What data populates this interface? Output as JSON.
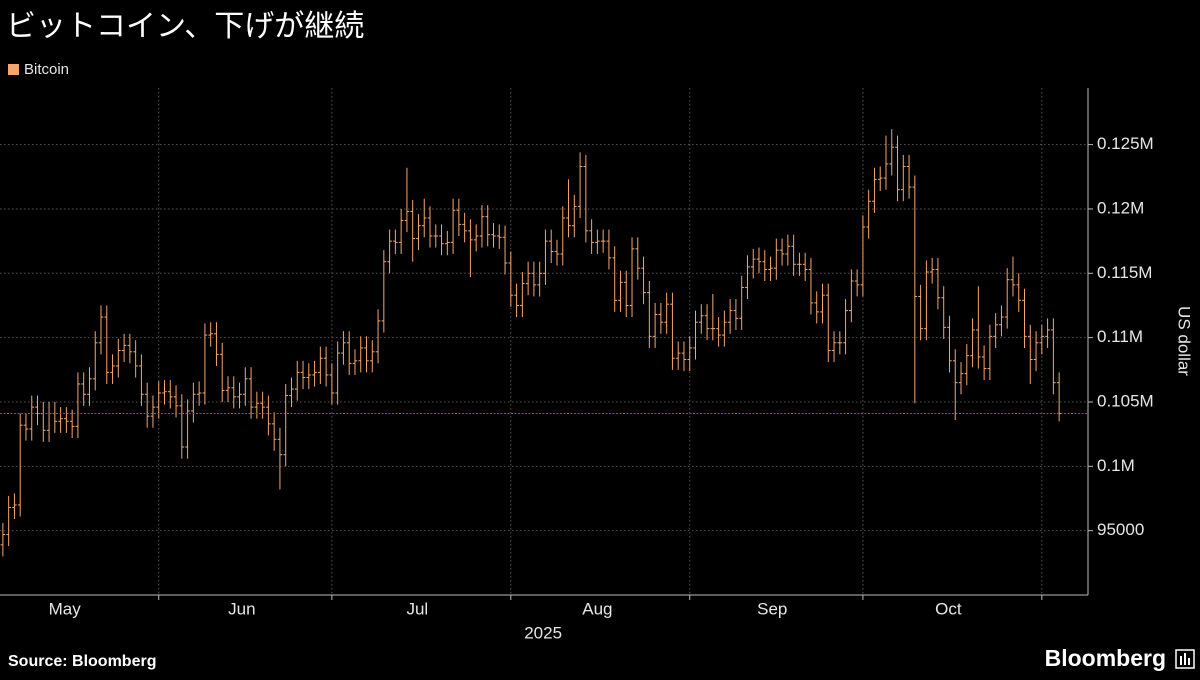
{
  "chart_data": {
    "type": "ohlc",
    "title": "ビットコイン、下げが継続",
    "y_label": "US dollar",
    "x_label": "2025",
    "source": "Source: Bloomberg",
    "brand": "Bloomberg",
    "ylim": [
      90000,
      129400
    ],
    "yticks": [
      95000,
      {
        "value": 100000,
        "label": "0.1M"
      },
      {
        "value": 105000,
        "label": "0.105M"
      },
      {
        "value": 110000,
        "label": "0.11M"
      },
      {
        "value": 115000,
        "label": "0.115M"
      },
      {
        "value": 120000,
        "label": "0.12M"
      },
      {
        "value": 125000,
        "label": "0.125M"
      }
    ],
    "xlim": [
      -0.5,
      188
    ],
    "xticks": [
      {
        "value": 10.7,
        "label": "May"
      },
      {
        "value": 41.4,
        "label": "Jun"
      },
      {
        "value": 71.8,
        "label": "Jul"
      },
      {
        "value": 103,
        "label": "Aug"
      },
      {
        "value": 133.3,
        "label": "Sep"
      },
      {
        "value": 163.8,
        "label": "Oct"
      }
    ],
    "xgrid": [
      27,
      57,
      88,
      119,
      149,
      180
    ],
    "x_label_position": 93.6,
    "grid": true,
    "last_price_line": true,
    "last_price_color": "#d0402a",
    "series": [
      {
        "name": "Bitcoin",
        "color": "#f5a66e",
        "open": [
          93900,
          94700,
          96800,
          97000,
          103200,
          102900,
          104600,
          104100,
          102800,
          104100,
          103500,
          103700,
          103500,
          103100,
          106400,
          105600,
          106800,
          109600,
          111600,
          107300,
          107800,
          109000,
          109400,
          108900,
          107800,
          105600,
          103900,
          104600,
          105700,
          105800,
          105400,
          104700,
          101500,
          104300,
          105600,
          105700,
          110200,
          110300,
          108700,
          105900,
          106100,
          105400,
          105600,
          106800,
          104600,
          104900,
          104600,
          103300,
          102100,
          100900,
          105500,
          106000,
          107300,
          106900,
          107100,
          107300,
          108400,
          107100,
          105700,
          108800,
          109600,
          108000,
          108200,
          109200,
          108200,
          108900,
          111300,
          115900,
          117500,
          117400,
          119100,
          119800,
          117700,
          118700,
          119300,
          117900,
          117900,
          117300,
          117400,
          119900,
          118800,
          118300,
          117600,
          117900,
          119400,
          118000,
          117900,
          117800,
          115800,
          113300,
          112500,
          114200,
          115000,
          114100,
          115000,
          117500,
          116700,
          116500,
          119300,
          118700,
          120200,
          123300,
          118300,
          117400,
          117500,
          117500,
          116200,
          112900,
          114300,
          112500,
          116900,
          115400,
          113500,
          110100,
          111800,
          111200,
          112600,
          108400,
          108800,
          108300,
          109200,
          111200,
          111700,
          110700,
          110700,
          110200,
          111200,
          112100,
          111500,
          113900,
          115500,
          116100,
          115900,
          115300,
          115400,
          116800,
          116500,
          117100,
          115700,
          115700,
          115300,
          112700,
          112000,
          113300,
          109000,
          109600,
          109600,
          112100,
          114400,
          114100,
          118600,
          120600,
          122300,
          122400,
          123500,
          124800,
          121500,
          123300,
          121700,
          113200,
          110700,
          115100,
          115300,
          113100,
          110800,
          108200,
          106500,
          107200,
          108600,
          110600,
          108500,
          107600,
          110100,
          111000,
          111600,
          114500,
          114100,
          112900,
          110100,
          108300,
          109600,
          110100,
          110600,
          106500
        ],
        "high": [
          95600,
          97700,
          97900,
          104100,
          104100,
          105500,
          105500,
          105000,
          105000,
          105000,
          104600,
          104600,
          104400,
          107300,
          107300,
          107700,
          110500,
          112500,
          112500,
          108700,
          109900,
          110300,
          110300,
          109800,
          108700,
          106500,
          105500,
          106600,
          106700,
          106700,
          106300,
          105600,
          105200,
          106500,
          106600,
          111100,
          111200,
          111200,
          109600,
          107000,
          107000,
          106500,
          107700,
          107700,
          105800,
          105800,
          105500,
          104200,
          103000,
          106400,
          106900,
          108200,
          108200,
          108000,
          108200,
          109300,
          109300,
          108000,
          109700,
          110500,
          110500,
          109100,
          110100,
          110100,
          109800,
          112200,
          116800,
          118400,
          118400,
          120000,
          123200,
          120700,
          119600,
          120800,
          120200,
          118800,
          118800,
          118300,
          120800,
          120800,
          119700,
          119200,
          118800,
          120300,
          120300,
          118900,
          118800,
          118700,
          116700,
          114200,
          115100,
          115900,
          115900,
          115900,
          118400,
          118400,
          117600,
          120200,
          122300,
          121100,
          124400,
          124200,
          119200,
          118400,
          118400,
          118400,
          117100,
          115200,
          115200,
          117800,
          117800,
          116300,
          114400,
          112700,
          112700,
          113500,
          113500,
          109700,
          109700,
          110100,
          112100,
          112600,
          112600,
          113400,
          111600,
          112100,
          113000,
          113000,
          114800,
          116400,
          116900,
          117000,
          116800,
          116300,
          117700,
          117700,
          118000,
          118000,
          116600,
          116600,
          116200,
          113600,
          114200,
          114200,
          110500,
          110500,
          113000,
          115300,
          115300,
          119500,
          121500,
          123200,
          123300,
          125700,
          126200,
          125700,
          124200,
          124200,
          122600,
          114100,
          116000,
          116200,
          116200,
          114000,
          111700,
          109100,
          108100,
          109500,
          111500,
          114000,
          109400,
          111000,
          111900,
          112500,
          115400,
          116300,
          115000,
          113800,
          111000,
          110500,
          111000,
          111500,
          111500,
          107300
        ],
        "low": [
          93000,
          93800,
          95900,
          96100,
          102000,
          102000,
          103200,
          101900,
          101900,
          102600,
          102600,
          102600,
          102200,
          102200,
          104700,
          104700,
          105900,
          108700,
          106400,
          106400,
          106900,
          108100,
          108000,
          106900,
          104700,
          103000,
          103000,
          103700,
          104800,
          104500,
          103800,
          100600,
          100600,
          103400,
          104700,
          104800,
          109300,
          107800,
          105000,
          105000,
          104500,
          104500,
          104700,
          103700,
          103700,
          103700,
          102400,
          101200,
          98200,
          100000,
          104600,
          105100,
          106000,
          106000,
          106200,
          106400,
          106200,
          104800,
          104800,
          107900,
          107100,
          107100,
          107300,
          107300,
          107300,
          108000,
          110400,
          115000,
          116500,
          116500,
          118200,
          115900,
          116800,
          117800,
          117000,
          117000,
          116400,
          116400,
          116500,
          117900,
          117400,
          114700,
          116700,
          117000,
          117100,
          117000,
          116900,
          114900,
          112400,
          111600,
          111600,
          113300,
          113200,
          113200,
          114100,
          115800,
          115600,
          115600,
          117800,
          117800,
          119300,
          117400,
          116500,
          116500,
          116600,
          115300,
          112000,
          112000,
          111600,
          111600,
          114500,
          112600,
          109200,
          109200,
          110300,
          110300,
          107500,
          107500,
          107400,
          107400,
          108300,
          110300,
          109800,
          109800,
          109300,
          109300,
          110300,
          110600,
          110600,
          113000,
          114600,
          115000,
          114400,
          114400,
          114500,
          115600,
          115600,
          114800,
          114800,
          114400,
          111800,
          111100,
          111100,
          108100,
          108100,
          108700,
          108700,
          111200,
          113200,
          113200,
          117700,
          119700,
          121400,
          121500,
          122600,
          120600,
          120600,
          120800,
          104900,
          109800,
          109800,
          114200,
          112200,
          109900,
          107300,
          103600,
          105600,
          106300,
          107700,
          107600,
          106700,
          106700,
          109200,
          110100,
          110700,
          113200,
          112000,
          109200,
          106400,
          107400,
          108700,
          109200,
          105600,
          103500
        ],
        "close": [
          94700,
          96800,
          97000,
          103200,
          102900,
          104600,
          104100,
          102800,
          104100,
          103500,
          103700,
          103500,
          103100,
          106400,
          105600,
          106800,
          109600,
          111600,
          107300,
          107800,
          109000,
          109400,
          108900,
          107800,
          105600,
          103900,
          104600,
          105700,
          105800,
          105400,
          104700,
          101500,
          104300,
          105600,
          105700,
          110200,
          110300,
          108700,
          105900,
          106100,
          105400,
          105600,
          106800,
          104600,
          104900,
          104600,
          103300,
          102100,
          100900,
          105500,
          106000,
          107300,
          106900,
          107100,
          107300,
          108400,
          107100,
          105700,
          108800,
          109600,
          108000,
          108200,
          109200,
          108200,
          108900,
          111300,
          115900,
          117500,
          117400,
          119100,
          119800,
          117700,
          118700,
          119300,
          117900,
          117900,
          117300,
          117400,
          119900,
          118800,
          118300,
          117600,
          117900,
          119400,
          118000,
          117900,
          117800,
          115800,
          113300,
          112500,
          114200,
          115000,
          114100,
          115000,
          117500,
          116700,
          116500,
          119300,
          118700,
          120200,
          123300,
          118300,
          117400,
          117500,
          117500,
          116200,
          112900,
          114300,
          112500,
          116900,
          115400,
          113500,
          110100,
          111800,
          111200,
          112600,
          108400,
          108800,
          108300,
          109200,
          111200,
          111700,
          110700,
          110700,
          110200,
          111200,
          112100,
          111500,
          113900,
          115500,
          116100,
          115900,
          115300,
          115400,
          116800,
          116500,
          117100,
          115700,
          115700,
          115300,
          112700,
          112000,
          113300,
          109000,
          109600,
          109600,
          112100,
          114400,
          114100,
          118600,
          120600,
          122300,
          122400,
          123500,
          124800,
          121500,
          123300,
          121700,
          113200,
          110700,
          115100,
          115300,
          113100,
          110800,
          108200,
          106500,
          107200,
          108600,
          110600,
          108500,
          107600,
          110100,
          111000,
          111600,
          114500,
          114100,
          112900,
          110100,
          108300,
          109600,
          110100,
          110600,
          106500,
          104100
        ]
      }
    ]
  }
}
